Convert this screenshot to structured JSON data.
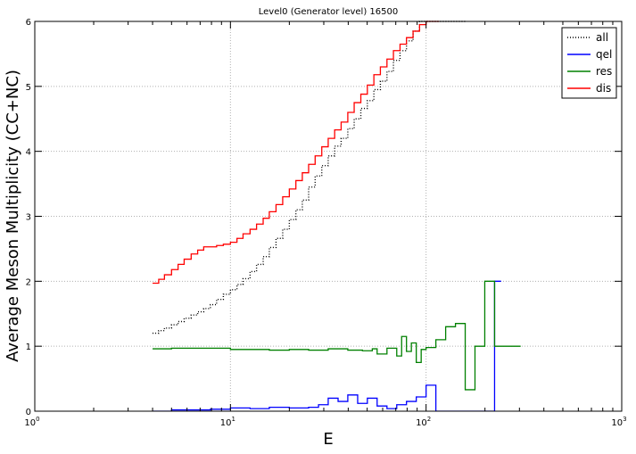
{
  "chart_data": {
    "type": "line",
    "title": "Level0 (Generator level) 16500",
    "xlabel": "E",
    "ylabel": "Average Meson Multiplicity (CC+NC)",
    "xscale": "log",
    "xlim": [
      1,
      1000
    ],
    "ylim": [
      0,
      6
    ],
    "xticks": [
      {
        "value": 1,
        "base": "10",
        "exp": "0"
      },
      {
        "value": 10,
        "base": "10",
        "exp": "1"
      },
      {
        "value": 100,
        "base": "10",
        "exp": "2"
      },
      {
        "value": 1000,
        "base": "10",
        "exp": "3"
      }
    ],
    "yticks": [
      0,
      1,
      2,
      3,
      4,
      5,
      6
    ],
    "grid": true,
    "legend_position": "top-right",
    "step": true,
    "series": [
      {
        "name": "all",
        "color": "#000000",
        "style": "dotted",
        "x": [
          4.0,
          4.3,
          4.6,
          5.0,
          5.4,
          5.8,
          6.3,
          6.8,
          7.3,
          7.9,
          8.5,
          9.2,
          10.0,
          10.8,
          11.6,
          12.6,
          13.6,
          14.7,
          15.8,
          17.1,
          18.5,
          20.0,
          21.6,
          23.3,
          25.1,
          27.1,
          29.3,
          31.6,
          34.1,
          36.8,
          39.8,
          42.9,
          46.4,
          50.1,
          54.1,
          58.4,
          63.1,
          68.1,
          73.6,
          79.4,
          85.8,
          92.6,
          100.0,
          108.0,
          116.6,
          125.9,
          136.0,
          146.8
        ],
        "y": [
          1.2,
          1.24,
          1.28,
          1.33,
          1.38,
          1.43,
          1.48,
          1.53,
          1.58,
          1.64,
          1.72,
          1.8,
          1.87,
          1.95,
          2.04,
          2.15,
          2.26,
          2.38,
          2.52,
          2.66,
          2.8,
          2.95,
          3.1,
          3.25,
          3.45,
          3.62,
          3.78,
          3.93,
          4.08,
          4.2,
          4.35,
          4.5,
          4.66,
          4.78,
          4.95,
          5.08,
          5.23,
          5.4,
          5.55,
          5.7,
          5.85,
          6.0,
          6.0,
          6.0,
          6.0,
          6.0,
          6.0,
          6.0
        ]
      },
      {
        "name": "qel",
        "color": "#0000ff",
        "style": "solid",
        "x": [
          4.0,
          5.0,
          6.3,
          7.9,
          10.0,
          12.6,
          15.8,
          20.0,
          25.1,
          28.2,
          31.6,
          35.5,
          39.8,
          44.7,
          50.1,
          56.2,
          63.1,
          70.8,
          79.4,
          89.1,
          100.0,
          112.2,
          125.9,
          141.3,
          158.5,
          177.8,
          199.5,
          223.9
        ],
        "y": [
          0.0,
          0.02,
          0.02,
          0.03,
          0.05,
          0.04,
          0.06,
          0.05,
          0.06,
          0.1,
          0.2,
          0.15,
          0.25,
          0.12,
          0.2,
          0.08,
          0.04,
          0.1,
          0.15,
          0.22,
          0.4,
          0.0,
          0.0,
          0.0,
          0.0,
          0.0,
          0.0,
          2.0
        ]
      },
      {
        "name": "res",
        "color": "#008000",
        "style": "solid",
        "x": [
          4.0,
          5.0,
          6.3,
          7.9,
          10.0,
          12.6,
          15.8,
          20.0,
          25.1,
          31.6,
          39.8,
          47.3,
          53.1,
          56.2,
          63.1,
          70.8,
          75.0,
          79.4,
          84.1,
          89.1,
          94.4,
          100.0,
          112.2,
          125.9,
          141.3,
          158.5,
          177.8,
          199.5,
          223.9,
          251.2,
          281.8
        ],
        "y": [
          0.96,
          0.97,
          0.97,
          0.97,
          0.95,
          0.95,
          0.94,
          0.95,
          0.94,
          0.96,
          0.94,
          0.93,
          0.96,
          0.88,
          0.97,
          0.85,
          1.15,
          0.92,
          1.05,
          0.75,
          0.95,
          0.98,
          1.1,
          1.3,
          1.35,
          0.33,
          1.0,
          2.0,
          1.0,
          1.0,
          1.0
        ]
      },
      {
        "name": "dis",
        "color": "#ff0000",
        "style": "solid",
        "x": [
          4.0,
          4.3,
          4.6,
          5.0,
          5.4,
          5.8,
          6.3,
          6.8,
          7.3,
          7.9,
          8.5,
          9.2,
          10.0,
          10.8,
          11.6,
          12.6,
          13.6,
          14.7,
          15.8,
          17.1,
          18.5,
          20.0,
          21.6,
          23.3,
          25.1,
          27.1,
          29.3,
          31.6,
          34.1,
          36.8,
          39.8,
          42.9,
          46.4,
          50.1,
          54.1,
          58.4,
          63.1,
          68.1,
          73.6,
          79.4,
          85.8,
          92.6,
          100.0,
          108.0
        ],
        "y": [
          1.97,
          2.03,
          2.1,
          2.18,
          2.26,
          2.34,
          2.42,
          2.48,
          2.53,
          2.53,
          2.55,
          2.57,
          2.6,
          2.66,
          2.73,
          2.8,
          2.88,
          2.97,
          3.07,
          3.18,
          3.3,
          3.42,
          3.55,
          3.67,
          3.8,
          3.93,
          4.07,
          4.2,
          4.33,
          4.45,
          4.6,
          4.75,
          4.88,
          5.02,
          5.18,
          5.3,
          5.42,
          5.55,
          5.65,
          5.75,
          5.85,
          5.95,
          6.0,
          6.0
        ]
      }
    ]
  }
}
